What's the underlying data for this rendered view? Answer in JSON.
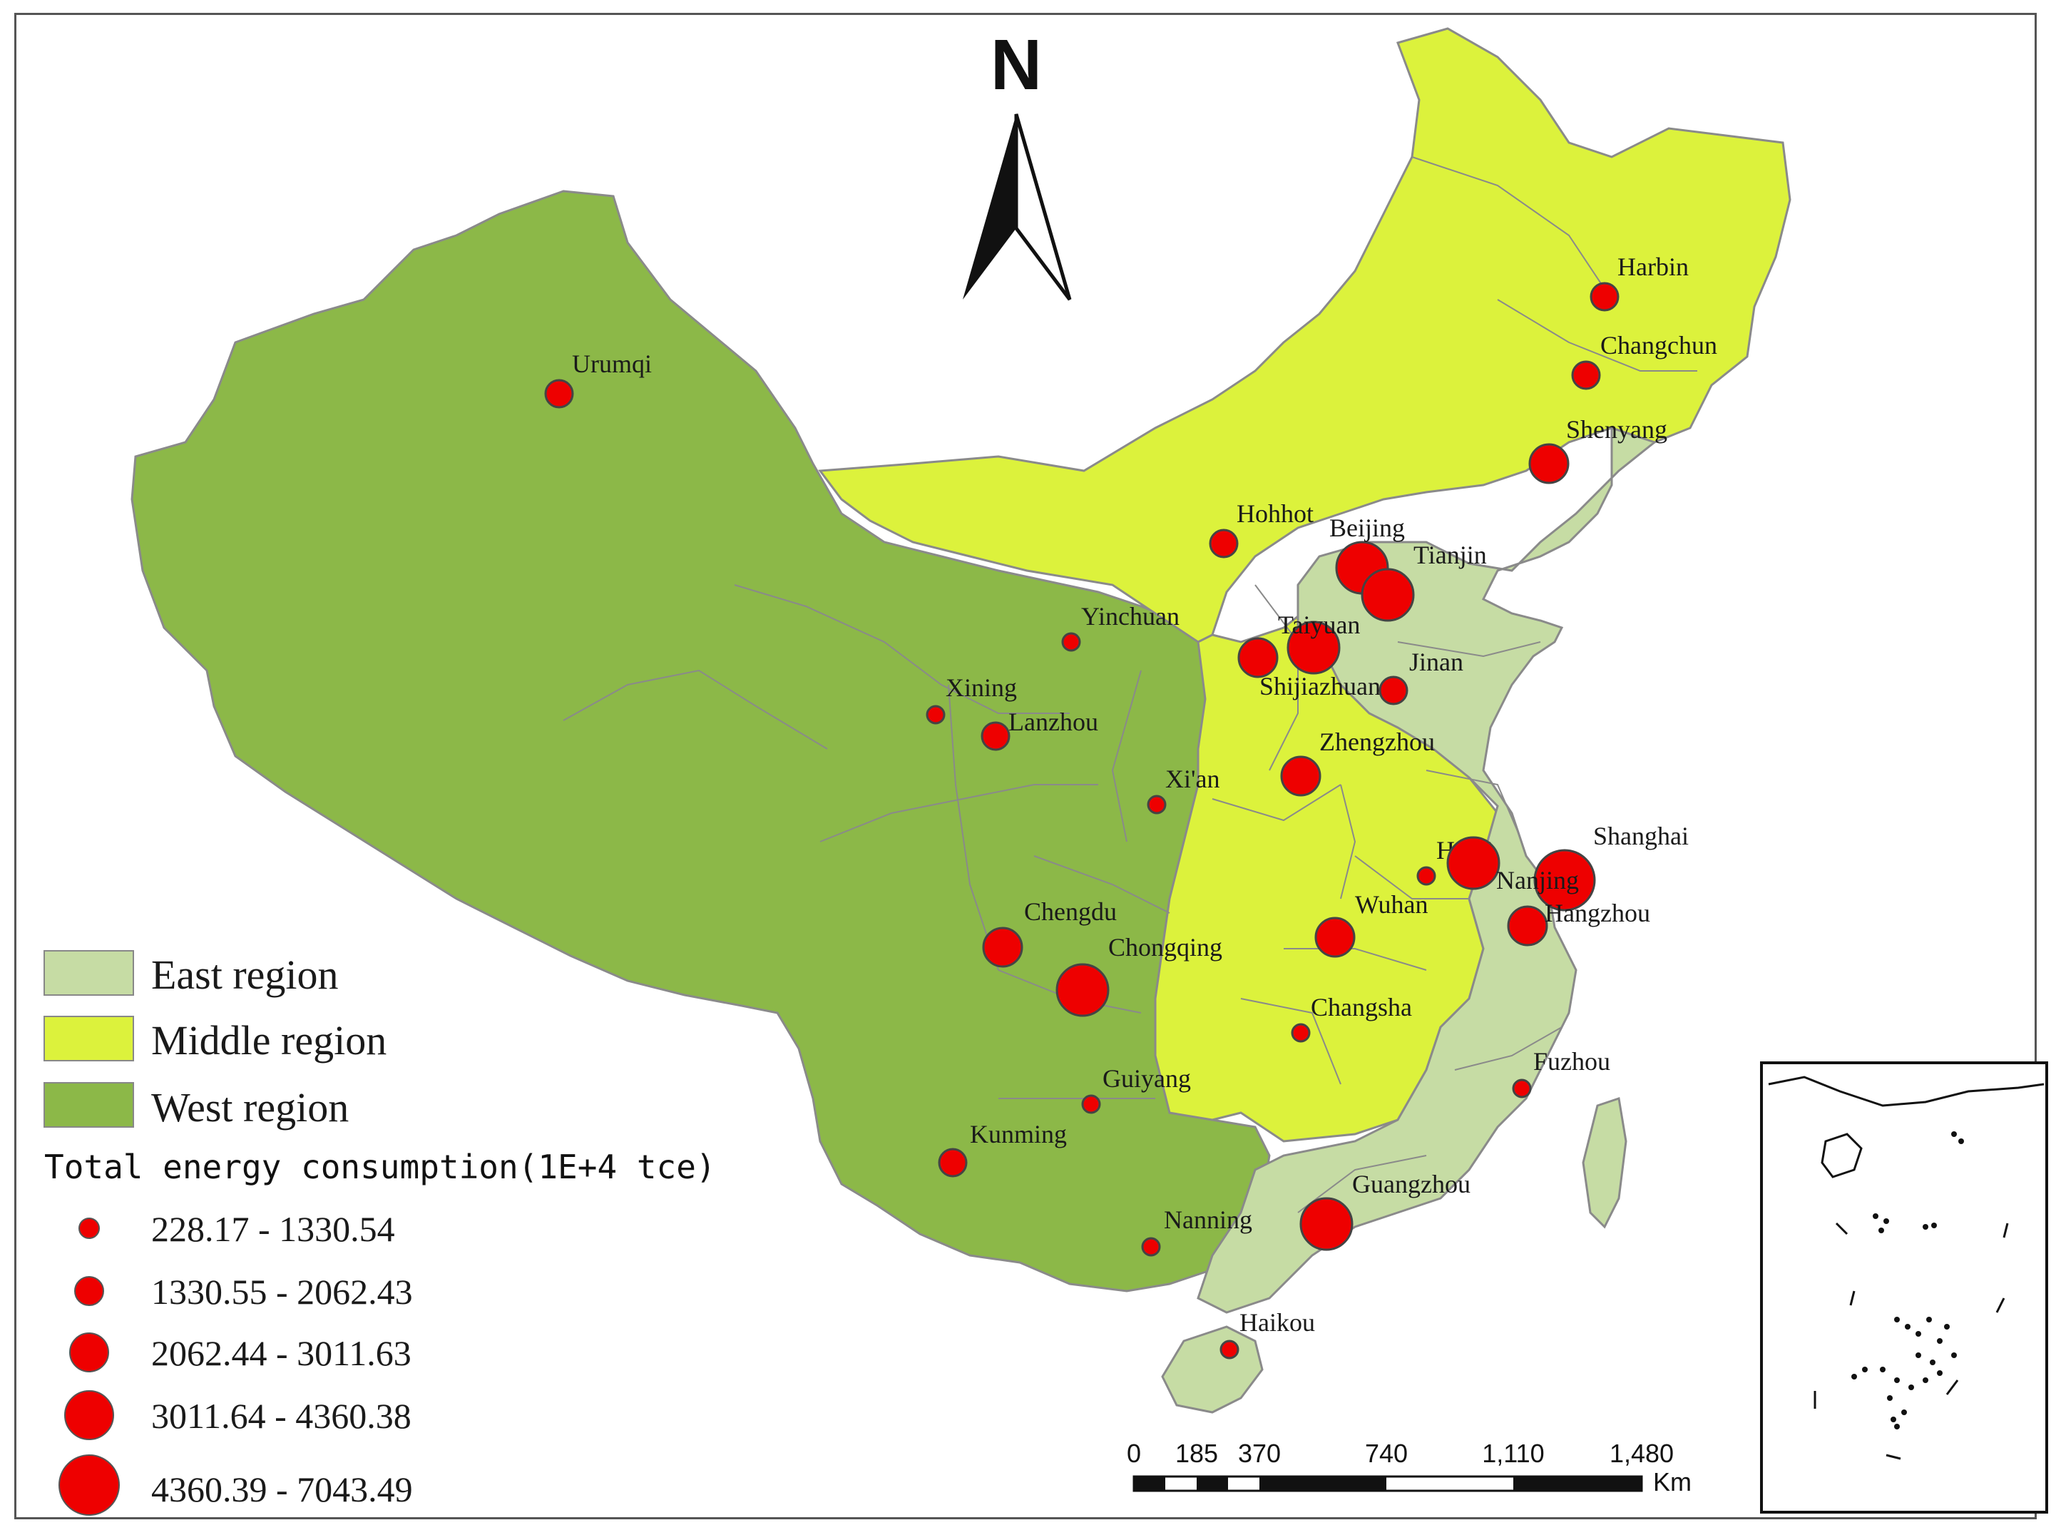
{
  "colors": {
    "east": "#c6dca4",
    "middle": "#dcf23c",
    "west": "#8cb848",
    "circle": "#ee0000",
    "border": "#8a8a8a"
  },
  "north_arrow": {
    "label": "N"
  },
  "legend": {
    "regions": [
      {
        "label": "East region",
        "color": "#c6dca4"
      },
      {
        "label": "Middle region",
        "color": "#dcf23c"
      },
      {
        "label": "West region",
        "color": "#8cb848"
      }
    ],
    "title": "Total energy consumption(1E+4 tce)",
    "classes": [
      "228.17 - 1330.54",
      "1330.55 - 2062.43",
      "2062.44 - 3011.63",
      "3011.64 - 4360.38",
      "4360.39 - 7043.49"
    ]
  },
  "scale_bar": {
    "ticks": [
      "0",
      "185",
      "370",
      "740",
      "1,110",
      "1,480"
    ],
    "unit": "Km"
  },
  "cities": [
    {
      "name": "Harbin",
      "class": 2
    },
    {
      "name": "Changchun",
      "class": 2
    },
    {
      "name": "Shenyang",
      "class": 3
    },
    {
      "name": "Urumqi",
      "class": 2
    },
    {
      "name": "Hohhot",
      "class": 2
    },
    {
      "name": "Beijing",
      "class": 4
    },
    {
      "name": "Tianjin",
      "class": 4
    },
    {
      "name": "Yinchuan",
      "class": 1
    },
    {
      "name": "Taiyuan",
      "class": 4
    },
    {
      "name": "Shijiazhuang",
      "class": 3
    },
    {
      "name": "Jinan",
      "class": 2
    },
    {
      "name": "Xining",
      "class": 1
    },
    {
      "name": "Lanzhou",
      "class": 2
    },
    {
      "name": "Zhengzhou",
      "class": 3
    },
    {
      "name": "Xi'an",
      "class": 1
    },
    {
      "name": "Shanghai",
      "class": 5
    },
    {
      "name": "Hefei",
      "class": 1
    },
    {
      "name": "Nanjing",
      "class": 4
    },
    {
      "name": "Hangzhou",
      "class": 3
    },
    {
      "name": "Wuhan",
      "class": 3
    },
    {
      "name": "Chengdu",
      "class": 3
    },
    {
      "name": "Chongqing",
      "class": 4
    },
    {
      "name": "Changsha",
      "class": 1
    },
    {
      "name": "Fuzhou",
      "class": 1
    },
    {
      "name": "Guiyang",
      "class": 1
    },
    {
      "name": "Kunming",
      "class": 2
    },
    {
      "name": "Guangzhou",
      "class": 4
    },
    {
      "name": "Nanning",
      "class": 1
    },
    {
      "name": "Haikou",
      "class": 1
    }
  ]
}
